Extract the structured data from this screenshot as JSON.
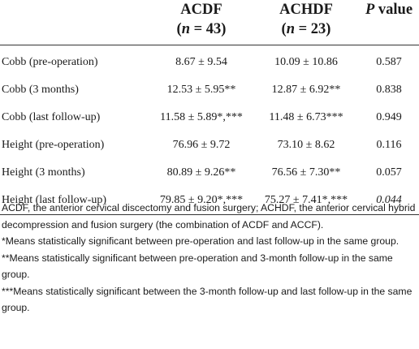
{
  "table": {
    "headers": {
      "col1_line1": "ACDF",
      "col1_n_open": "(",
      "col1_n_var": "n",
      "col1_n_close": " = 43)",
      "col2_line1": "ACHDF",
      "col2_n_open": "(",
      "col2_n_var": "n",
      "col2_n_close": " = 23)",
      "col3_p": "P",
      "col3_rest": " value"
    },
    "rows": [
      {
        "label": "Cobb (pre-operation)",
        "acdf": "8.67 ± 9.54",
        "achdf": "10.09 ± 10.86",
        "p": "0.587"
      },
      {
        "label": "Cobb (3 months)",
        "acdf": "12.53 ± 5.95**",
        "achdf": "12.87 ± 6.92**",
        "p": "0.838"
      },
      {
        "label": "Cobb (last follow-up)",
        "acdf": "11.58 ± 5.89*,***",
        "achdf": "11.48 ± 6.73***",
        "p": "0.949"
      },
      {
        "label": "Height (pre-operation)",
        "acdf": "76.96 ± 9.72",
        "achdf": "73.10 ± 8.62",
        "p": "0.116"
      },
      {
        "label": "Height (3 months)",
        "acdf": "80.89 ± 9.26**",
        "achdf": "76.56 ± 7.30**",
        "p": "0.057"
      },
      {
        "label": "Height (last follow-up)",
        "acdf": "79.85 ± 9.20*,***",
        "achdf": "75.27 ± 7.41*,***",
        "p": "0.044"
      }
    ]
  },
  "footnotes": {
    "abbrev": "ACDF, the anterior cervical discectomy and fusion surgery; ACHDF, the anterior cervical hybrid decompression and fusion surgery (the combination of ACDF and ACCF).",
    "note1": "*Means statistically significant between pre-operation and last follow-up in the same group.",
    "note2": "**Means statistically significant between pre-operation and 3-month follow-up in the same group.",
    "note3": "***Means statistically significant between the 3-month follow-up and last follow-up in the same group."
  }
}
